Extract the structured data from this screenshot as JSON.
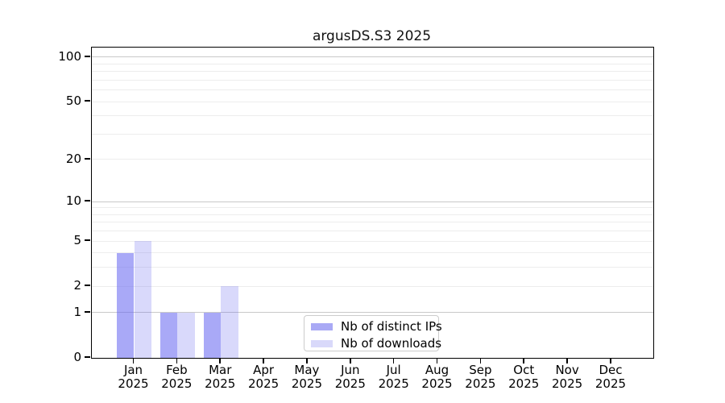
{
  "title": "argusDS.S3 2025",
  "chart_data": {
    "type": "bar",
    "title": "argusDS.S3 2025",
    "categories": [
      "Jan 2025",
      "Feb 2025",
      "Mar 2025",
      "Apr 2025",
      "May 2025",
      "Jun 2025",
      "Jul 2025",
      "Aug 2025",
      "Sep 2025",
      "Oct 2025",
      "Nov 2025",
      "Dec 2025"
    ],
    "series": [
      {
        "name": "Nb of distinct IPs",
        "color": "rgba(102,102,240,0.56)",
        "solid_color": "#a9a9f5",
        "values": [
          4,
          1,
          1,
          0,
          0,
          0,
          0,
          0,
          0,
          0,
          0,
          0
        ]
      },
      {
        "name": "Nb of downloads",
        "color": "rgba(102,102,240,0.25)",
        "solid_color": "#d9d9fa",
        "values": [
          5,
          1,
          2,
          0,
          0,
          0,
          0,
          0,
          0,
          0,
          0,
          0
        ]
      }
    ],
    "xlabel": "",
    "ylabel": "",
    "yscale": "log1p",
    "ylim": [
      0,
      116
    ],
    "yticks": [
      100,
      50,
      20,
      10,
      5,
      2,
      1,
      0
    ],
    "major_gridlines": [
      1,
      10,
      100
    ],
    "minor_gridlines": [
      2,
      3,
      4,
      5,
      6,
      7,
      8,
      9,
      20,
      30,
      40,
      50,
      60,
      70,
      80,
      90
    ],
    "grid": true,
    "legend_position": "lower center",
    "gridline_major_color": "#c9c9c9",
    "gridline_minor_color": "#ededed"
  }
}
